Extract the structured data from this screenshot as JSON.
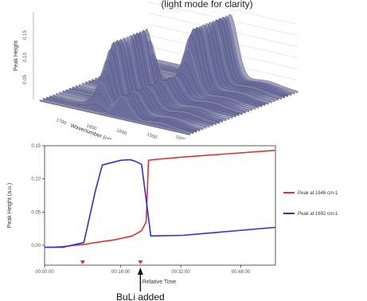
{
  "surface_plot": {
    "caption": "(light mode for clarity)",
    "axis_title_x": "Wavenumber (cm-1)",
    "axis_title_z": "Peak Height",
    "x_ticks": [
      "1700",
      "1650",
      "1600",
      "1550",
      "1500"
    ],
    "z_ticks": [
      "0.15",
      "0.10",
      "0.05"
    ],
    "colors": {
      "surface": "#6b6e9c",
      "highlight": "#e8e6b8",
      "grid": "#c8c8c8"
    }
  },
  "chart_data": {
    "type": "line",
    "title": "",
    "xlabel": "Relative Time",
    "ylabel": "Peak Height (a.u.)",
    "ylim": [
      -0.003,
      0.015
    ],
    "xlim": [
      0,
      1.0
    ],
    "x_tick_labels": [
      {
        "x": 0.0,
        "label": "00:00:00"
      },
      {
        "x": 0.33,
        "label": "00:16:00"
      },
      {
        "x": 0.59,
        "label": "00:32:00"
      },
      {
        "x": 0.85,
        "label": "00:48:00"
      }
    ],
    "y_ticks": [
      {
        "value": 0.015,
        "label": "0.15"
      },
      {
        "value": 0.01,
        "label": "0.10"
      },
      {
        "value": 0.005,
        "label": "0.05"
      },
      {
        "value": 0.0,
        "label": "0.00"
      }
    ],
    "grid": false,
    "legend_position": "right",
    "series": [
      {
        "name": "Peak at 1646 cm-1",
        "color": "#e03131",
        "x": [
          0.0,
          0.03,
          0.08,
          0.13,
          0.17,
          0.2,
          0.3,
          0.38,
          0.42,
          0.44,
          0.45,
          0.47,
          0.6,
          0.8,
          1.0
        ],
        "y": [
          -0.0003,
          -0.0003,
          -0.0002,
          0.0,
          0.0001,
          0.0003,
          0.0008,
          0.0014,
          0.0022,
          0.0035,
          0.0128,
          0.0129,
          0.0133,
          0.0138,
          0.0143
        ]
      },
      {
        "name": "Peak at 1692 cm-1",
        "color": "#2b2fe0",
        "x": [
          0.0,
          0.03,
          0.08,
          0.13,
          0.17,
          0.22,
          0.25,
          0.33,
          0.37,
          0.39,
          0.42,
          0.44,
          0.46,
          0.6,
          0.8,
          1.0
        ],
        "y": [
          -0.0003,
          -0.0003,
          -0.0003,
          0.0001,
          0.0004,
          0.0082,
          0.0121,
          0.0128,
          0.0129,
          0.0127,
          0.0122,
          0.0069,
          0.0014,
          0.0015,
          0.0021,
          0.0027
        ]
      }
    ],
    "markers": [
      {
        "x": 0.165,
        "color": "#e03131"
      },
      {
        "x": 0.415,
        "color": "#e03131"
      }
    ],
    "annotation": {
      "text": "BuLi added",
      "x": 0.415
    }
  }
}
